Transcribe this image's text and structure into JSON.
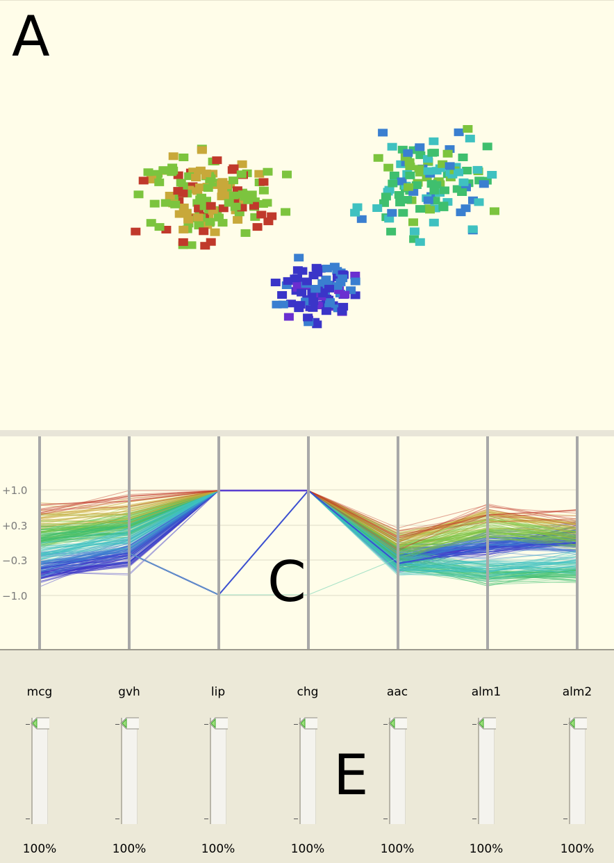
{
  "panels": {
    "scatter_letter": "A",
    "parallel_letter": "C",
    "slider_letter": "E"
  },
  "parallel_coordinates": {
    "y_tick_labels": [
      "+1.0",
      "+0.3",
      "−0.3",
      "−1.0"
    ],
    "axes": [
      "mcg",
      "gvh",
      "lip",
      "chg",
      "aac",
      "alm1",
      "alm2"
    ]
  },
  "weight_sliders": [
    {
      "name": "mcg",
      "value": "100%"
    },
    {
      "name": "gvh",
      "value": "100%"
    },
    {
      "name": "lip",
      "value": "100%"
    },
    {
      "name": "chg",
      "value": "100%"
    },
    {
      "name": "aac",
      "value": "100%"
    },
    {
      "name": "alm1",
      "value": "100%"
    },
    {
      "name": "alm2",
      "value": "100%"
    }
  ],
  "colors": {
    "background": "#fffde9",
    "slider_panel": "#ece9d8",
    "cluster_palette": [
      "#c0392b",
      "#c8a83a",
      "#7cc43e",
      "#3fbf6e",
      "#3fc1c0",
      "#3a7fd0",
      "#3a35c8",
      "#6a2fd0"
    ]
  }
}
